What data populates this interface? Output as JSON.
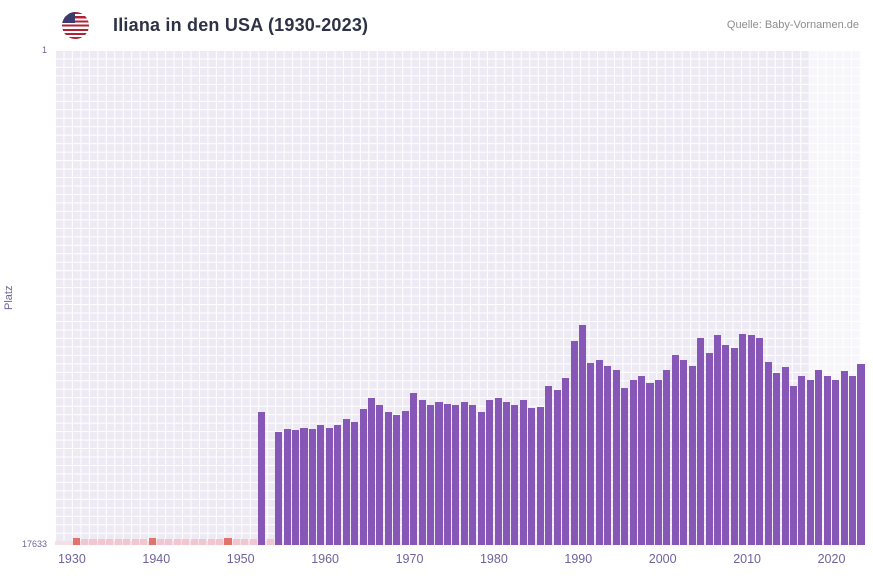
{
  "header": {
    "title": "Iliana in den USA (1930-2023)",
    "source": "Quelle: Baby-Vornamen.de",
    "flag_icon": "usa-flag"
  },
  "chart_data": {
    "type": "bar",
    "title": "Iliana in den USA (1930-2023)",
    "ylabel": "Platz",
    "y_axis": {
      "top_label": "1",
      "bottom_label": "17633",
      "min": 1,
      "max": 17633,
      "inverted": true
    },
    "x_ticks": [
      1930,
      1940,
      1950,
      1960,
      1970,
      1980,
      1990,
      2000,
      2010,
      2020
    ],
    "x_domain": [
      1928,
      2023.5
    ],
    "start_year": 1930,
    "end_year": 2023,
    "legend": "none",
    "grid": true,
    "ranks": [
      null,
      null,
      null,
      null,
      null,
      null,
      null,
      null,
      null,
      null,
      null,
      null,
      null,
      null,
      null,
      null,
      null,
      null,
      null,
      null,
      null,
      null,
      12900,
      null,
      13600,
      13500,
      13550,
      13450,
      13500,
      13350,
      13450,
      13350,
      13150,
      13250,
      12800,
      12400,
      12650,
      12900,
      13000,
      12850,
      12200,
      12450,
      12650,
      12550,
      12600,
      12650,
      12550,
      12650,
      12900,
      12450,
      12400,
      12550,
      12650,
      12450,
      12750,
      12700,
      11950,
      12100,
      11700,
      10350,
      9800,
      11150,
      11050,
      11250,
      11400,
      12050,
      11750,
      11600,
      11850,
      11750,
      11400,
      10850,
      11050,
      11250,
      10250,
      10800,
      10150,
      10500,
      10600,
      10100,
      10150,
      10250,
      11100,
      11500,
      11300,
      11950,
      11600,
      11750,
      11400,
      11600,
      11750,
      11450,
      11600,
      11200
    ],
    "no_data_dark_years": [
      1930,
      1939,
      1948
    ],
    "highlight_from": 2017.5,
    "colors": {
      "bar": "#8757b8",
      "plot_bg": "#edeaf4",
      "grid": "#ffffff",
      "no_data_light": "#f2c6ce",
      "no_data_dark": "#e0736c",
      "baseline": "#f6dfe4",
      "axis_text": "#6f639e",
      "highlight": "rgba(255,255,255,0.55)",
      "title_text": "#2e3247",
      "source_text": "#8d8d8d"
    }
  }
}
